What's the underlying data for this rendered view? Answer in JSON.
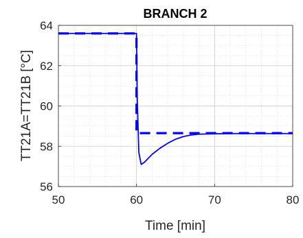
{
  "chart_data": {
    "type": "line",
    "title": "BRANCH 2",
    "xlabel": "Time [min]",
    "ylabel": "TT21A=TT21B [°C]",
    "xlim": [
      50,
      80
    ],
    "ylim": [
      56,
      64
    ],
    "xticks": [
      50,
      60,
      70,
      80
    ],
    "yticks": [
      56,
      58,
      60,
      62,
      64
    ],
    "grid": "on, with minor grid",
    "line_color": "#0000ff",
    "series": [
      {
        "style": "solid",
        "x": [
          50,
          60,
          60.1,
          60.3,
          60.6,
          61,
          61.5,
          62,
          63,
          64,
          65,
          66,
          67,
          68,
          70,
          72,
          75,
          80
        ],
        "y": [
          63.6,
          63.6,
          60.3,
          57.7,
          57.1,
          57.2,
          57.4,
          57.6,
          57.9,
          58.15,
          58.35,
          58.48,
          58.56,
          58.6,
          58.62,
          58.63,
          58.63,
          58.63
        ]
      },
      {
        "style": "dashed",
        "x": [
          50,
          60,
          60,
          80
        ],
        "y": [
          63.6,
          63.6,
          58.65,
          58.65
        ]
      }
    ]
  }
}
